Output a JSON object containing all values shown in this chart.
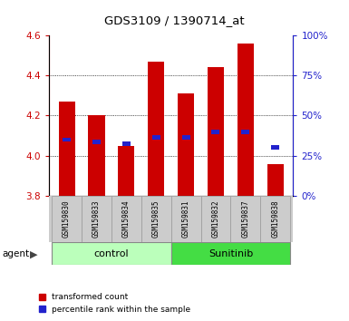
{
  "title": "GDS3109 / 1390714_at",
  "samples": [
    "GSM159830",
    "GSM159833",
    "GSM159834",
    "GSM159835",
    "GSM159831",
    "GSM159832",
    "GSM159837",
    "GSM159838"
  ],
  "red_values": [
    4.27,
    4.2,
    4.05,
    4.47,
    4.31,
    4.44,
    4.56,
    3.96
  ],
  "blue_values": [
    4.08,
    4.07,
    4.06,
    4.09,
    4.09,
    4.12,
    4.12,
    4.04
  ],
  "y_min": 3.8,
  "y_max": 4.6,
  "y_ticks_left": [
    3.8,
    4.0,
    4.2,
    4.4,
    4.6
  ],
  "y_ticks_right": [
    0,
    25,
    50,
    75,
    100
  ],
  "groups": [
    {
      "label": "control",
      "color": "#bbffbb"
    },
    {
      "label": "Sunitinib",
      "color": "#44dd44"
    }
  ],
  "bar_color": "#cc0000",
  "blue_color": "#2222cc",
  "bar_width": 0.55,
  "agent_label": "agent",
  "legend_red": "transformed count",
  "legend_blue": "percentile rank within the sample",
  "tick_label_color_left": "#cc0000",
  "tick_label_color_right": "#2222cc"
}
